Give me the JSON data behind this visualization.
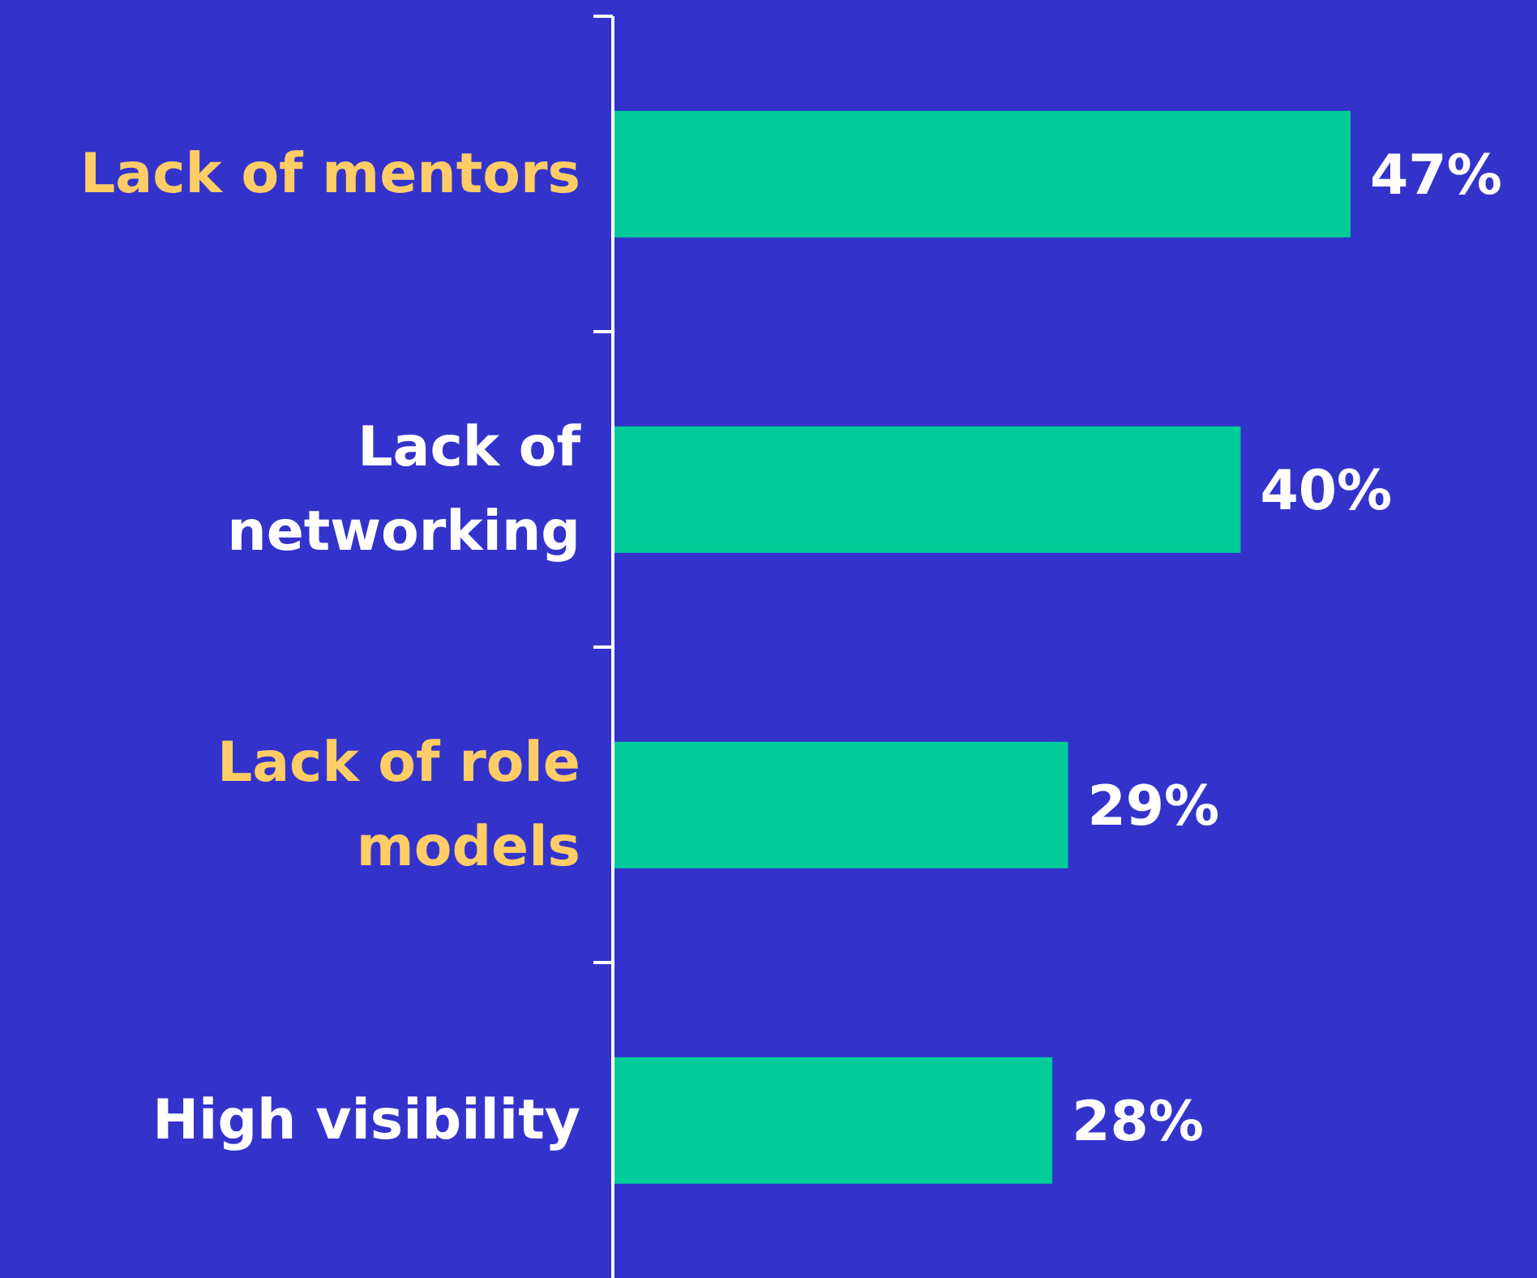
{
  "chart_data": {
    "type": "bar",
    "orientation": "horizontal",
    "categories": [
      "Lack of mentors",
      "Lack of networking",
      "Lack of role models",
      "High visibility"
    ],
    "values": [
      47,
      40,
      29,
      28
    ],
    "value_labels": [
      "47%",
      "40%",
      "29%",
      "28%"
    ],
    "color": "#00cc99"
  }
}
